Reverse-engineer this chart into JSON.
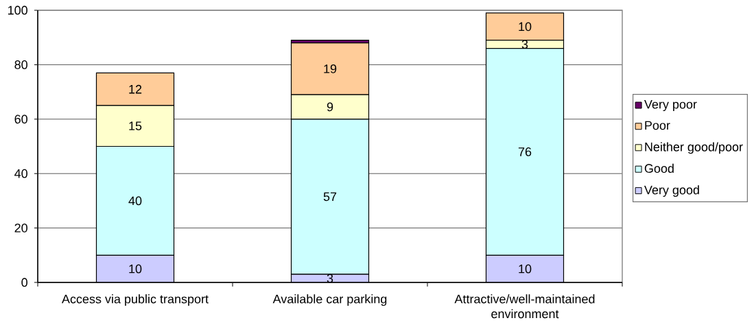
{
  "chart_data": {
    "type": "bar",
    "stacked": true,
    "categories": [
      "Access via public transport",
      "Available car parking",
      "Attractive/well-maintained environment"
    ],
    "series": [
      {
        "name": "Very good",
        "color": "#ccccff",
        "values": [
          10,
          3,
          10
        ],
        "value_labels": [
          "10",
          "3",
          "10"
        ]
      },
      {
        "name": "Good",
        "color": "#ccffff",
        "values": [
          40,
          57,
          76
        ],
        "value_labels": [
          "40",
          "57",
          "76"
        ]
      },
      {
        "name": "Neither good/poor",
        "color": "#ffffcc",
        "values": [
          15,
          9,
          3
        ],
        "value_labels": [
          "15",
          "9",
          "3"
        ]
      },
      {
        "name": "Poor",
        "color": "#ffcc99",
        "values": [
          12,
          19,
          10
        ],
        "value_labels": [
          "12",
          "19",
          "10"
        ]
      },
      {
        "name": "Very poor",
        "color": "#660066",
        "values": [
          null,
          1,
          null
        ]
      }
    ],
    "ylim": [
      0,
      100
    ],
    "yticks": [
      0,
      20,
      40,
      60,
      80,
      100
    ],
    "grid": "y",
    "legend": "right"
  }
}
